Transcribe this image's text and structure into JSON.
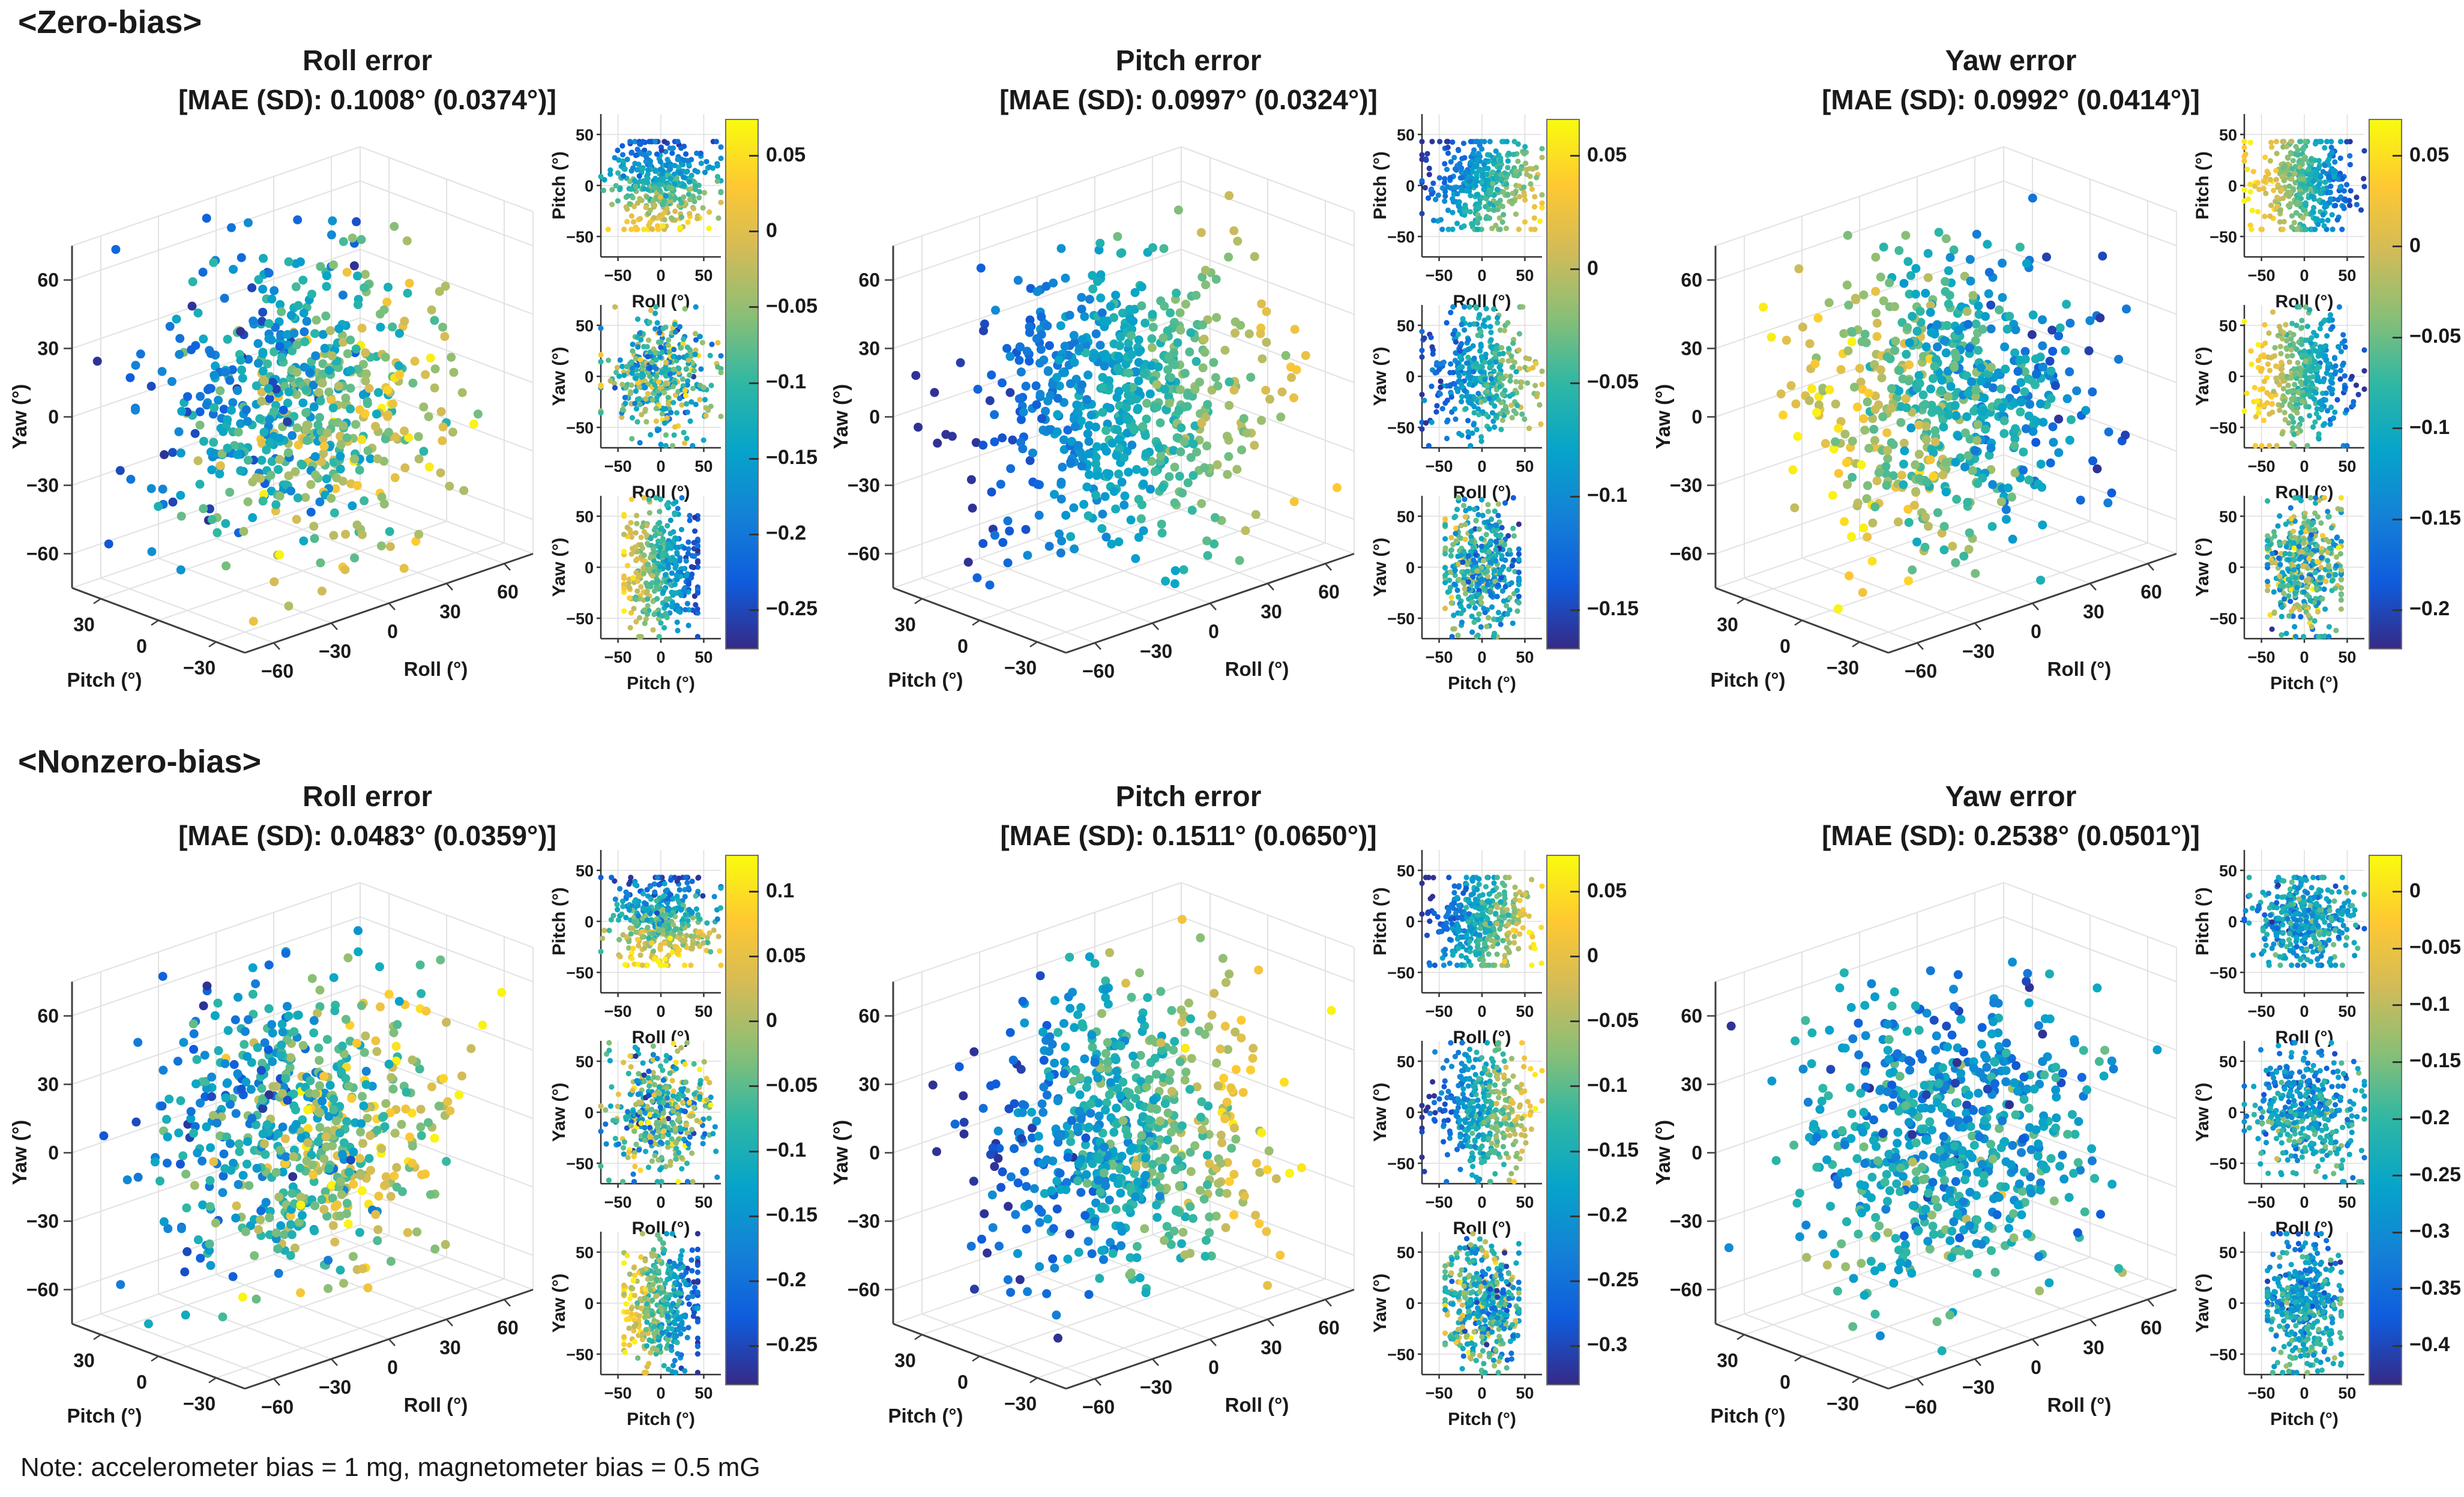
{
  "page": {
    "zero_bias_heading": "<Zero-bias>",
    "nonzero_bias_heading": "<Nonzero-bias>",
    "note": "Note: accelerometer bias = 1 mg, magnetometer bias = 0.5 mG"
  },
  "colors": {
    "parula_stops": [
      "#352a87",
      "#0f5cdd",
      "#1481d6",
      "#06a4ca",
      "#2eb7a4",
      "#87bf77",
      "#d1bb59",
      "#fec832",
      "#f9fb0e"
    ],
    "axis_line": "#3f3f3f",
    "grid_line": "#e2e2e2",
    "text": "#1a1a1a"
  },
  "axes3d": {
    "z_label": "Yaw (°)",
    "z_ticks": [
      "60",
      "30",
      "0",
      "−30",
      "−60"
    ],
    "x_label": "Pitch (°)",
    "x_ticks": [
      "30",
      "0",
      "−30"
    ],
    "y_label": "Roll (°)",
    "y_ticks": [
      "−60",
      "−30",
      "0",
      "30",
      "60"
    ]
  },
  "small_plots": [
    {
      "ylabel": "Pitch (°)",
      "xlabel": "Roll (°)"
    },
    {
      "ylabel": "Yaw (°)",
      "xlabel": "Roll (°)"
    },
    {
      "ylabel": "Yaw (°)",
      "xlabel": "Pitch (°)"
    }
  ],
  "small_axis_ticks": {
    "x_labels": [
      "−50",
      "0",
      "50"
    ],
    "y_labels": [
      "50",
      "0",
      "−50"
    ]
  },
  "chart_data": [
    {
      "id": "zero-bias-roll-error",
      "row": 0,
      "col": 0,
      "type": "scatter",
      "title": "Roll error",
      "subtitle": "[MAE (SD): 0.1008° (0.0374°)]",
      "mae_deg": "0.1008",
      "sd_deg": "0.0374",
      "axis_ranges": {
        "roll": [
          -60,
          60
        ],
        "pitch": [
          -30,
          30
        ],
        "yaw": [
          -60,
          60
        ],
        "small_xy": [
          -50,
          50
        ]
      },
      "colorbar_ticks": [
        "0.05",
        "0",
        "−0.05",
        "−0.1",
        "−0.15",
        "−0.2",
        "−0.25"
      ],
      "color_trend": "blue at high pitch, yellow-orange at low pitch",
      "gradient": {
        "base": 0.5,
        "p": -1,
        "r": 0,
        "y": 0,
        "scale": 115,
        "noise": 0.11
      },
      "seed": 11
    },
    {
      "id": "zero-bias-pitch-error",
      "row": 0,
      "col": 1,
      "type": "scatter",
      "title": "Pitch error",
      "subtitle": "[MAE (SD): 0.0997° (0.0324°)]",
      "mae_deg": "0.0997",
      "sd_deg": "0.0324",
      "axis_ranges": {
        "roll": [
          -60,
          60
        ],
        "pitch": [
          -30,
          30
        ],
        "yaw": [
          -60,
          60
        ],
        "small_xy": [
          -50,
          50
        ]
      },
      "colorbar_ticks": [
        "0.05",
        "0",
        "−0.05",
        "−0.1",
        "−0.15"
      ],
      "color_trend": "mostly blue, greener toward high roll",
      "gradient": {
        "base": 0.42,
        "p": -0.45,
        "r": 0.75,
        "y": 0,
        "scale": 150,
        "noise": 0.08
      },
      "seed": 22
    },
    {
      "id": "zero-bias-yaw-error",
      "row": 0,
      "col": 2,
      "type": "scatter",
      "title": "Yaw error",
      "subtitle": "[MAE (SD): 0.0992° (0.0414°)]",
      "mae_deg": "0.0992",
      "sd_deg": "0.0414",
      "axis_ranges": {
        "roll": [
          -60,
          60
        ],
        "pitch": [
          -30,
          30
        ],
        "yaw": [
          -60,
          60
        ],
        "small_xy": [
          -50,
          50
        ]
      },
      "colorbar_ticks": [
        "0.05",
        "0",
        "−0.05",
        "−0.1",
        "−0.15",
        "−0.2"
      ],
      "color_trend": "yellow-orange at low roll, blue at high roll",
      "gradient": {
        "base": 0.52,
        "p": 0,
        "r": -1,
        "y": 0,
        "scale": 145,
        "noise": 0.09
      },
      "seed": 33
    },
    {
      "id": "nonzero-bias-roll-error",
      "row": 1,
      "col": 0,
      "type": "scatter",
      "title": "Roll error",
      "subtitle": "[MAE (SD): 0.0483° (0.0359°)]",
      "mae_deg": "0.0483",
      "sd_deg": "0.0359",
      "axis_ranges": {
        "roll": [
          -60,
          60
        ],
        "pitch": [
          -30,
          30
        ],
        "yaw": [
          -60,
          60
        ],
        "small_xy": [
          -50,
          50
        ]
      },
      "colorbar_ticks": [
        "0.1",
        "0.05",
        "0",
        "−0.05",
        "−0.1",
        "−0.15",
        "−0.2",
        "−0.25"
      ],
      "color_trend": "blue at high pitch, yellow-orange at low pitch",
      "gradient": {
        "base": 0.52,
        "p": -1,
        "r": 0,
        "y": 0,
        "scale": 110,
        "noise": 0.16
      },
      "seed": 44
    },
    {
      "id": "nonzero-bias-pitch-error",
      "row": 1,
      "col": 1,
      "type": "scatter",
      "title": "Pitch error",
      "subtitle": "[MAE (SD): 0.1511° (0.0650°)]",
      "mae_deg": "0.1511",
      "sd_deg": "0.0650",
      "axis_ranges": {
        "roll": [
          -60,
          60
        ],
        "pitch": [
          -30,
          30
        ],
        "yaw": [
          -60,
          60
        ],
        "small_xy": [
          -50,
          50
        ]
      },
      "colorbar_ticks": [
        "0.05",
        "0",
        "−0.05",
        "−0.1",
        "−0.15",
        "−0.2",
        "−0.25",
        "−0.3"
      ],
      "color_trend": "blue at low roll, yellow at high roll",
      "gradient": {
        "base": 0.46,
        "p": -0.3,
        "r": 1,
        "y": 0,
        "scale": 150,
        "noise": 0.11
      },
      "seed": 55
    },
    {
      "id": "nonzero-bias-yaw-error",
      "row": 1,
      "col": 2,
      "type": "scatter",
      "title": "Yaw error",
      "subtitle": "[MAE (SD): 0.2538° (0.0501°)]",
      "mae_deg": "0.2538",
      "sd_deg": "0.0501",
      "axis_ranges": {
        "roll": [
          -60,
          60
        ],
        "pitch": [
          -30,
          30
        ],
        "yaw": [
          -60,
          60
        ],
        "small_xy": [
          -50,
          50
        ]
      },
      "colorbar_ticks": [
        "0",
        "−0.05",
        "−0.1",
        "−0.15",
        "−0.2",
        "−0.25",
        "−0.3",
        "−0.35",
        "−0.4"
      ],
      "color_trend": "mostly blue-teal with green speckles, slightly greener at low yaw",
      "gradient": {
        "base": 0.37,
        "p": 0,
        "r": 0,
        "y": -0.5,
        "scale": 280,
        "noise": 0.18
      },
      "seed": 66
    }
  ]
}
